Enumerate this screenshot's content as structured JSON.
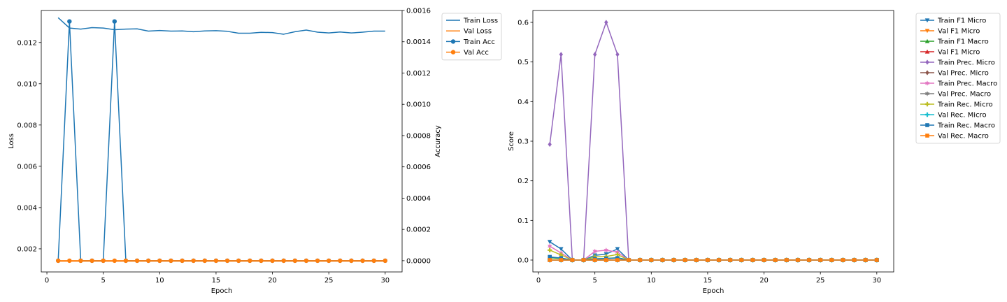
{
  "chart_data": [
    {
      "type": "line",
      "xlabel": "Epoch",
      "ylabel": "Loss",
      "y2label": "Accuracy",
      "xlim": [
        -0.5,
        31.5
      ],
      "ylim": [
        0.00088,
        0.01355
      ],
      "y2lim": [
        -7.2e-05,
        0.0016
      ],
      "xticks": [
        0,
        5,
        10,
        15,
        20,
        25,
        30
      ],
      "yticks": [
        0.002,
        0.004,
        0.006,
        0.008,
        0.01,
        0.012
      ],
      "yticklabels": [
        "0.002",
        "0.004",
        "0.006",
        "0.008",
        "0.010",
        "0.012"
      ],
      "y2ticks": [
        0,
        0.0002,
        0.0004,
        0.0006,
        0.0008,
        0.001,
        0.0012,
        0.0014,
        0.0016
      ],
      "y2ticklabels": [
        "0.0000",
        "0.0002",
        "0.0004",
        "0.0006",
        "0.0008",
        "0.0010",
        "0.0012",
        "0.0014",
        "0.0016"
      ],
      "legend_position": "outside-top-right",
      "grid": false,
      "x": [
        1,
        2,
        3,
        4,
        5,
        6,
        7,
        8,
        9,
        10,
        11,
        12,
        13,
        14,
        15,
        16,
        17,
        18,
        19,
        20,
        21,
        22,
        23,
        24,
        25,
        26,
        27,
        28,
        29,
        30
      ],
      "series": [
        {
          "name": "Train Loss",
          "axis": "left",
          "color": "#1f77b4",
          "marker": "none",
          "values": [
            0.0132,
            0.0127,
            0.01265,
            0.01272,
            0.0127,
            0.01262,
            0.01265,
            0.01266,
            0.01255,
            0.01258,
            0.01255,
            0.01256,
            0.01252,
            0.01256,
            0.01257,
            0.01254,
            0.01245,
            0.01245,
            0.01249,
            0.01248,
            0.0124,
            0.01252,
            0.0126,
            0.0125,
            0.01246,
            0.01251,
            0.01246,
            0.0125,
            0.01255,
            0.01255
          ]
        },
        {
          "name": "Val Loss",
          "axis": "left",
          "color": "#ff7f0e",
          "marker": "none",
          "values": [
            0.0014,
            0.0014,
            0.0014,
            0.0014,
            0.0014,
            0.0014,
            0.0014,
            0.0014,
            0.0014,
            0.0014,
            0.0014,
            0.0014,
            0.0014,
            0.0014,
            0.0014,
            0.0014,
            0.0014,
            0.0014,
            0.0014,
            0.0014,
            0.0014,
            0.0014,
            0.0014,
            0.0014,
            0.0014,
            0.0014,
            0.0014,
            0.0014,
            0.0014,
            0.0014
          ]
        },
        {
          "name": "Train Acc",
          "axis": "right",
          "color": "#1f77b4",
          "marker": "circle",
          "values": [
            0,
            0.00153,
            0,
            0,
            0,
            0.00153,
            0,
            0,
            0,
            0,
            0,
            0,
            0,
            0,
            0,
            0,
            0,
            0,
            0,
            0,
            0,
            0,
            0,
            0,
            0,
            0,
            0,
            0,
            0,
            0
          ]
        },
        {
          "name": "Val Acc",
          "axis": "right",
          "color": "#ff7f0e",
          "marker": "circle",
          "values": [
            0,
            0,
            0,
            0,
            0,
            0,
            0,
            0,
            0,
            0,
            0,
            0,
            0,
            0,
            0,
            0,
            0,
            0,
            0,
            0,
            0,
            0,
            0,
            0,
            0,
            0,
            0,
            0,
            0,
            0
          ]
        }
      ]
    },
    {
      "type": "line",
      "xlabel": "Epoch",
      "ylabel": "Score",
      "xlim": [
        -0.5,
        31.5
      ],
      "ylim": [
        -0.03,
        0.63
      ],
      "xticks": [
        0,
        5,
        10,
        15,
        20,
        25,
        30
      ],
      "yticks": [
        0.0,
        0.1,
        0.2,
        0.3,
        0.4,
        0.5,
        0.6
      ],
      "yticklabels": [
        "0.0",
        "0.1",
        "0.2",
        "0.3",
        "0.4",
        "0.5",
        "0.6"
      ],
      "legend_position": "outside-top-right",
      "grid": false,
      "x": [
        1,
        2,
        3,
        4,
        5,
        6,
        7,
        8,
        9,
        10,
        11,
        12,
        13,
        14,
        15,
        16,
        17,
        18,
        19,
        20,
        21,
        22,
        23,
        24,
        25,
        26,
        27,
        28,
        29,
        30
      ],
      "series": [
        {
          "name": "Train F1 Micro",
          "color": "#1f77b4",
          "marker": "triangle-down",
          "values": [
            0.046,
            0.028,
            0,
            0,
            0.012,
            0.015,
            0.028,
            0,
            0,
            0,
            0,
            0,
            0,
            0,
            0,
            0,
            0,
            0,
            0,
            0,
            0,
            0,
            0,
            0,
            0,
            0,
            0,
            0,
            0,
            0
          ]
        },
        {
          "name": "Val F1 Micro",
          "color": "#ff7f0e",
          "marker": "triangle-down",
          "values": [
            0,
            0,
            0,
            0,
            0,
            0,
            0,
            0,
            0,
            0,
            0,
            0,
            0,
            0,
            0,
            0,
            0,
            0,
            0,
            0,
            0,
            0,
            0,
            0,
            0,
            0,
            0,
            0,
            0,
            0
          ]
        },
        {
          "name": "Train F1 Macro",
          "color": "#2ca02c",
          "marker": "triangle-up",
          "values": [
            0.006,
            0.004,
            0,
            0,
            0.003,
            0.004,
            0.006,
            0,
            0,
            0,
            0,
            0,
            0,
            0,
            0,
            0,
            0,
            0,
            0,
            0,
            0,
            0,
            0,
            0,
            0,
            0,
            0,
            0,
            0,
            0
          ]
        },
        {
          "name": "Val F1 Micro",
          "color": "#d62728",
          "marker": "triangle-up",
          "values": [
            0,
            0,
            0,
            0,
            0,
            0,
            0,
            0,
            0,
            0,
            0,
            0,
            0,
            0,
            0,
            0,
            0,
            0,
            0,
            0,
            0,
            0,
            0,
            0,
            0,
            0,
            0,
            0,
            0,
            0
          ]
        },
        {
          "name": "Train Prec. Micro",
          "color": "#9467bd",
          "marker": "diamond",
          "values": [
            0.292,
            0.519,
            0,
            0,
            0.519,
            0.6,
            0.519,
            0,
            0,
            0,
            0,
            0,
            0,
            0,
            0,
            0,
            0,
            0,
            0,
            0,
            0,
            0,
            0,
            0,
            0,
            0,
            0,
            0,
            0,
            0
          ]
        },
        {
          "name": "Val Prec. Micro",
          "color": "#8c564b",
          "marker": "diamond",
          "values": [
            0,
            0,
            0,
            0,
            0,
            0,
            0,
            0,
            0,
            0,
            0,
            0,
            0,
            0,
            0,
            0,
            0,
            0,
            0,
            0,
            0,
            0,
            0,
            0,
            0,
            0,
            0,
            0,
            0,
            0
          ]
        },
        {
          "name": "Train Prec. Macro",
          "color": "#e377c2",
          "marker": "star",
          "values": [
            0.035,
            0.018,
            0,
            0,
            0.022,
            0.025,
            0.02,
            0,
            0,
            0,
            0,
            0,
            0,
            0,
            0,
            0,
            0,
            0,
            0,
            0,
            0,
            0,
            0,
            0,
            0,
            0,
            0,
            0,
            0,
            0
          ]
        },
        {
          "name": "Val Prec. Macro",
          "color": "#7f7f7f",
          "marker": "star",
          "values": [
            0,
            0,
            0,
            0,
            0,
            0,
            0,
            0,
            0,
            0,
            0,
            0,
            0,
            0,
            0,
            0,
            0,
            0,
            0,
            0,
            0,
            0,
            0,
            0,
            0,
            0,
            0,
            0,
            0,
            0
          ]
        },
        {
          "name": "Train Rec. Micro",
          "color": "#bcbd22",
          "marker": "plus",
          "values": [
            0.025,
            0.013,
            0,
            0,
            0.008,
            0.009,
            0.014,
            0,
            0,
            0,
            0,
            0,
            0,
            0,
            0,
            0,
            0,
            0,
            0,
            0,
            0,
            0,
            0,
            0,
            0,
            0,
            0,
            0,
            0,
            0
          ]
        },
        {
          "name": "Val Rec. Micro",
          "color": "#17becf",
          "marker": "plus",
          "values": [
            0,
            0,
            0,
            0,
            0,
            0,
            0,
            0,
            0,
            0,
            0,
            0,
            0,
            0,
            0,
            0,
            0,
            0,
            0,
            0,
            0,
            0,
            0,
            0,
            0,
            0,
            0,
            0,
            0,
            0
          ]
        },
        {
          "name": "Train Rec. Macro",
          "color": "#1f77b4",
          "marker": "square",
          "values": [
            0.008,
            0.005,
            0,
            0,
            0.003,
            0.004,
            0.005,
            0,
            0,
            0,
            0,
            0,
            0,
            0,
            0,
            0,
            0,
            0,
            0,
            0,
            0,
            0,
            0,
            0,
            0,
            0,
            0,
            0,
            0,
            0
          ]
        },
        {
          "name": "Val Rec. Macro",
          "color": "#ff7f0e",
          "marker": "square",
          "values": [
            0,
            0,
            0,
            0,
            0,
            0,
            0,
            0,
            0,
            0,
            0,
            0,
            0,
            0,
            0,
            0,
            0,
            0,
            0,
            0,
            0,
            0,
            0,
            0,
            0,
            0,
            0,
            0,
            0,
            0
          ]
        }
      ]
    }
  ]
}
